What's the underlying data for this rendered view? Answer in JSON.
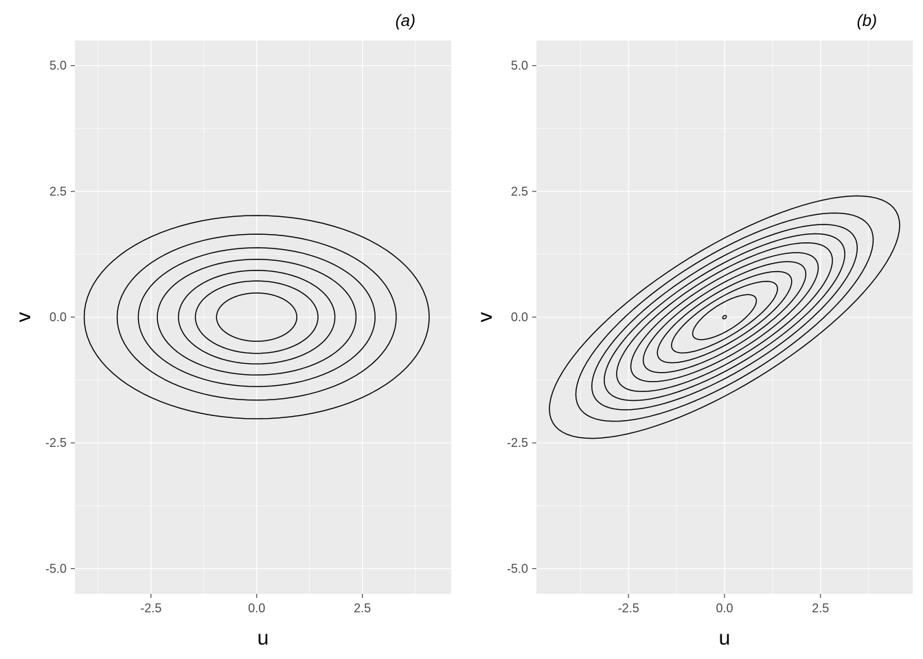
{
  "chart_data": [
    {
      "type": "contour",
      "title": "(a)",
      "xlabel": "u",
      "ylabel": "v",
      "xlim": [
        -4.3,
        4.6
      ],
      "ylim": [
        -5.5,
        5.5
      ],
      "x_ticks": [
        -2.5,
        0.0,
        2.5
      ],
      "x_tick_labels": [
        "-2.5",
        "0.0",
        "2.5"
      ],
      "y_ticks": [
        -5.0,
        -2.5,
        0.0,
        2.5,
        5.0
      ],
      "y_tick_labels": [
        "-5.0",
        "-2.5",
        "0.0",
        "2.5",
        "5.0"
      ],
      "grid": true,
      "background": "#ebebeb",
      "line_color": "#000000",
      "center": [
        0.0,
        0.0
      ],
      "contours": [
        {
          "level": 1,
          "u_radius": 0.95,
          "v_radius": 0.48
        },
        {
          "level": 2,
          "u_radius": 1.45,
          "v_radius": 0.72
        },
        {
          "level": 3,
          "u_radius": 1.85,
          "v_radius": 0.93
        },
        {
          "level": 4,
          "u_radius": 2.35,
          "v_radius": 1.15
        },
        {
          "level": 5,
          "u_radius": 2.8,
          "v_radius": 1.38
        },
        {
          "level": 6,
          "u_radius": 3.3,
          "v_radius": 1.65
        },
        {
          "level": 7,
          "u_radius": 4.08,
          "v_radius": 2.02
        }
      ]
    },
    {
      "type": "contour",
      "title": "(b)",
      "xlabel": "u",
      "ylabel": "v",
      "xlim": [
        -4.9,
        4.9
      ],
      "ylim": [
        -5.5,
        5.5
      ],
      "x_ticks": [
        -2.5,
        0.0,
        2.5
      ],
      "x_tick_labels": [
        "-2.5",
        "0.0",
        "2.5"
      ],
      "y_ticks": [
        -5.0,
        -2.5,
        0.0,
        2.5,
        5.0
      ],
      "y_tick_labels": [
        "-5.0",
        "-2.5",
        "0.0",
        "2.5",
        "5.0"
      ],
      "grid": true,
      "background": "#ebebeb",
      "line_color": "#000000",
      "center": [
        0.0,
        0.0
      ],
      "rotation_deg": 24,
      "contours": [
        {
          "level": 1,
          "major": 0.05,
          "minor": 0.03
        },
        {
          "level": 2,
          "major": 0.9,
          "minor": 0.28
        },
        {
          "level": 3,
          "major": 1.5,
          "minor": 0.4
        },
        {
          "level": 4,
          "major": 1.9,
          "minor": 0.52
        },
        {
          "level": 5,
          "major": 2.3,
          "minor": 0.64
        },
        {
          "level": 6,
          "major": 2.65,
          "minor": 0.76
        },
        {
          "level": 7,
          "major": 3.05,
          "minor": 0.88
        },
        {
          "level": 8,
          "major": 3.4,
          "minor": 1.0
        },
        {
          "level": 9,
          "major": 3.75,
          "minor": 1.13
        },
        {
          "level": 10,
          "major": 4.2,
          "minor": 1.28
        },
        {
          "level": 11,
          "major": 4.95,
          "minor": 1.45
        }
      ]
    }
  ]
}
